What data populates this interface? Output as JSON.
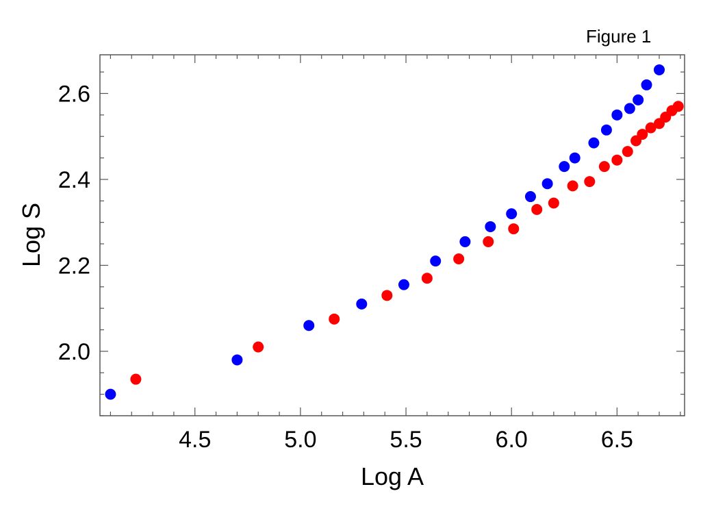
{
  "figure_label": "Figure 1",
  "chart_data": {
    "type": "scatter",
    "xlabel": "Log A",
    "ylabel": "Log S",
    "xlim": [
      4.05,
      6.82
    ],
    "ylim": [
      1.85,
      2.69
    ],
    "x_ticks": [
      4.5,
      5.0,
      5.5,
      6.0,
      6.5
    ],
    "x_tick_labels": [
      "4.5",
      "5.0",
      "5.5",
      "6.0",
      "6.5"
    ],
    "y_ticks": [
      2.0,
      2.2,
      2.4,
      2.6
    ],
    "y_tick_labels": [
      "2.0",
      "2.2",
      "2.4",
      "2.6"
    ],
    "grid": false,
    "series": [
      {
        "color": "#0000ff",
        "points": [
          [
            4.1,
            1.9
          ],
          [
            4.7,
            1.98
          ],
          [
            5.04,
            2.06
          ],
          [
            5.29,
            2.11
          ],
          [
            5.49,
            2.155
          ],
          [
            5.64,
            2.21
          ],
          [
            5.78,
            2.255
          ],
          [
            5.9,
            2.29
          ],
          [
            6.0,
            2.32
          ],
          [
            6.09,
            2.36
          ],
          [
            6.17,
            2.39
          ],
          [
            6.25,
            2.43
          ],
          [
            6.3,
            2.45
          ],
          [
            6.39,
            2.485
          ],
          [
            6.45,
            2.515
          ],
          [
            6.5,
            2.55
          ],
          [
            6.56,
            2.565
          ],
          [
            6.6,
            2.585
          ],
          [
            6.64,
            2.62
          ],
          [
            6.7,
            2.655
          ]
        ]
      },
      {
        "color": "#ff0000",
        "points": [
          [
            4.22,
            1.935
          ],
          [
            4.8,
            2.01
          ],
          [
            5.16,
            2.075
          ],
          [
            5.41,
            2.13
          ],
          [
            5.6,
            2.17
          ],
          [
            5.75,
            2.215
          ],
          [
            5.89,
            2.255
          ],
          [
            6.01,
            2.285
          ],
          [
            6.12,
            2.33
          ],
          [
            6.2,
            2.345
          ],
          [
            6.29,
            2.385
          ],
          [
            6.37,
            2.395
          ],
          [
            6.44,
            2.43
          ],
          [
            6.5,
            2.445
          ],
          [
            6.55,
            2.465
          ],
          [
            6.59,
            2.49
          ],
          [
            6.62,
            2.505
          ],
          [
            6.66,
            2.52
          ],
          [
            6.7,
            2.53
          ],
          [
            6.73,
            2.545
          ],
          [
            6.76,
            2.56
          ],
          [
            6.79,
            2.57
          ]
        ]
      }
    ]
  }
}
